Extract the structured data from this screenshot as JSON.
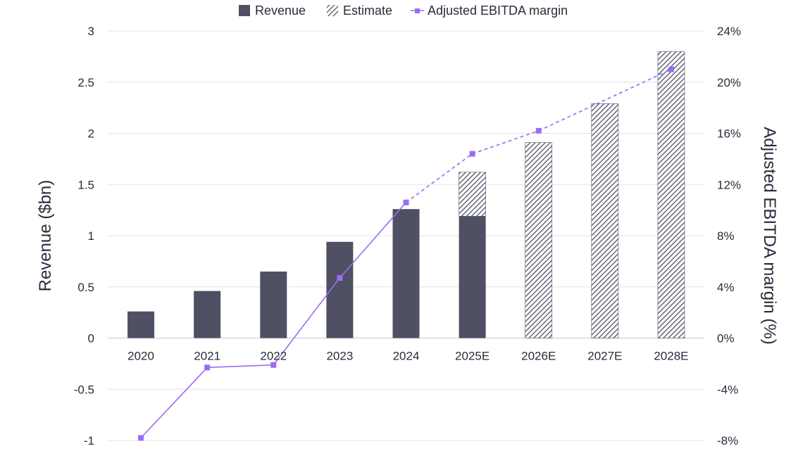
{
  "chart_data": {
    "type": "bar",
    "categories": [
      "2020",
      "2021",
      "2022",
      "2023",
      "2024",
      "2025E",
      "2026E",
      "2027E",
      "2028E"
    ],
    "series": [
      {
        "name": "Revenue",
        "type": "bar",
        "axis": "left",
        "values": [
          0.26,
          0.46,
          0.65,
          0.94,
          1.26,
          1.19,
          null,
          null,
          null
        ],
        "color": "#4f5063"
      },
      {
        "name": "Estimate",
        "type": "bar-stacked-hatched",
        "axis": "left",
        "values": [
          null,
          null,
          null,
          null,
          null,
          0.43,
          1.91,
          2.29,
          2.8
        ],
        "color": "#4f5063"
      },
      {
        "name": "Adjusted EBITDA margin",
        "type": "line",
        "axis": "right",
        "values": [
          -7.8,
          -2.3,
          -2.1,
          4.7,
          10.6,
          14.4,
          16.2,
          null,
          21.0
        ],
        "actual_through_index": 4,
        "color": "#9b6cf0"
      }
    ],
    "ylabel": "Revenue ($bn)",
    "y2label": "Adjusted EBITDA margin (%)",
    "ylim": [
      -1,
      3
    ],
    "y2lim": [
      -8,
      24
    ],
    "yticks": [
      "3",
      "2.5",
      "2",
      "1.5",
      "1",
      "0.5",
      "0",
      "-0.5",
      "-1"
    ],
    "y2ticks": [
      "24%",
      "20%",
      "16%",
      "12%",
      "8%",
      "4%",
      "0%",
      "-4%",
      "-8%"
    ],
    "legend": [
      "Revenue",
      "Estimate",
      "Adjusted EBITDA margin"
    ],
    "legend_position": "top-center",
    "grid": true
  }
}
